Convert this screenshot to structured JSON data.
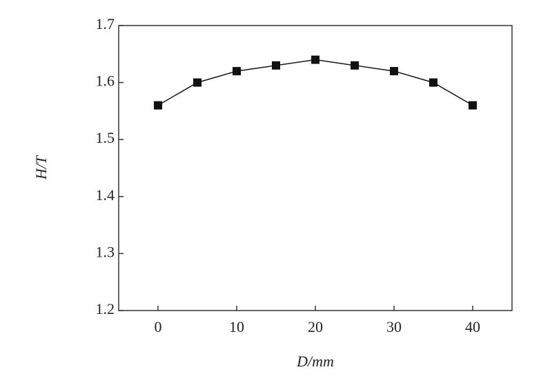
{
  "chart_data": {
    "type": "line",
    "x_label": "D/mm",
    "y_label": "H/T",
    "x": [
      0,
      5,
      10,
      15,
      20,
      25,
      30,
      35,
      40
    ],
    "values": [
      1.56,
      1.6,
      1.62,
      1.63,
      1.64,
      1.63,
      1.62,
      1.6,
      1.56
    ],
    "color": "#111111",
    "xlim": [
      -5,
      45
    ],
    "xticks": [
      0,
      10,
      20,
      30,
      40
    ],
    "ylim": [
      1.2,
      1.7
    ],
    "yticks": [
      1.2,
      1.3,
      1.4,
      1.5,
      1.6,
      1.7
    ]
  }
}
